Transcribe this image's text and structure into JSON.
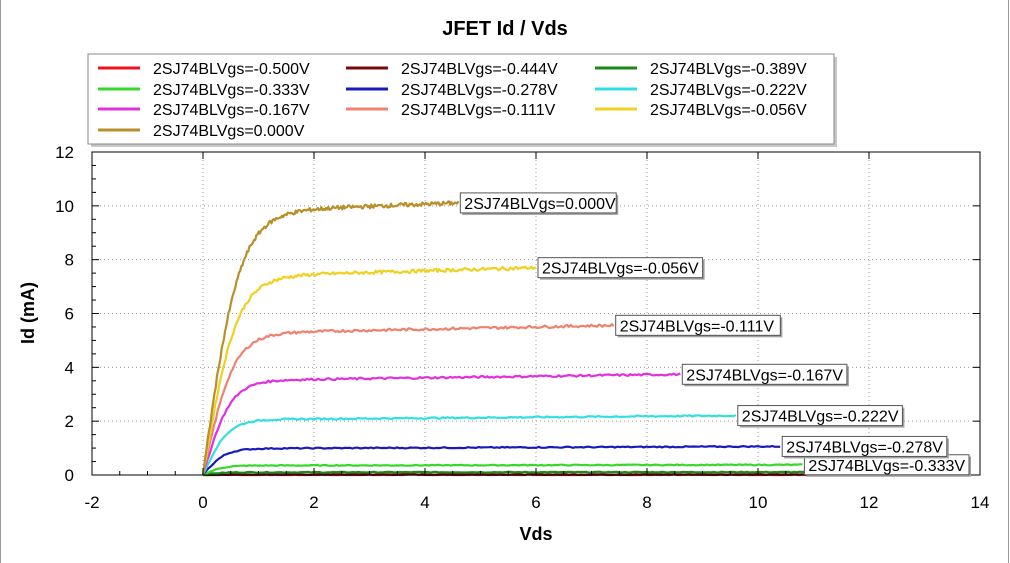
{
  "chart_data": {
    "type": "line",
    "title": "JFET Id / Vds",
    "xlabel": "Vds",
    "ylabel": "Id (mA)",
    "xlim": [
      -2,
      14
    ],
    "ylim": [
      0,
      12
    ],
    "xticks": [
      -2,
      0,
      2,
      4,
      6,
      8,
      10,
      12,
      14
    ],
    "yticks": [
      0,
      2,
      4,
      6,
      8,
      10,
      12
    ],
    "grid": true,
    "legend": "top",
    "series": [
      {
        "name": "2SJ74BLVgs=-0.500V",
        "color": "#e8141e",
        "x_end": 11.0,
        "sat": 0.0,
        "vk": 0.3,
        "label_shown": false
      },
      {
        "name": "2SJ74BLVgs=-0.444V",
        "color": "#7a0a0a",
        "x_end": 11.0,
        "sat": 0.02,
        "vk": 0.3,
        "label_shown": false
      },
      {
        "name": "2SJ74BLVgs=-0.389V",
        "color": "#1a8a1a",
        "x_end": 11.0,
        "sat": 0.1,
        "vk": 0.3,
        "label_shown": false
      },
      {
        "name": "2SJ74BLVgs=-0.333V",
        "color": "#36d82a",
        "x_end": 10.8,
        "sat": 0.35,
        "vk": 0.35,
        "label_shown": true
      },
      {
        "name": "2SJ74BLVgs=-0.278V",
        "color": "#1a1ab8",
        "x_end": 10.4,
        "sat": 0.98,
        "vk": 0.4,
        "label_shown": true
      },
      {
        "name": "2SJ74BLVgs=-0.222V",
        "color": "#30e0e0",
        "x_end": 9.6,
        "sat": 2.05,
        "vk": 0.45,
        "label_shown": true
      },
      {
        "name": "2SJ74BLVgs=-0.167V",
        "color": "#e030e0",
        "x_end": 8.6,
        "sat": 3.5,
        "vk": 0.5,
        "label_shown": true
      },
      {
        "name": "2SJ74BLVgs=-0.111V",
        "color": "#f08070",
        "x_end": 7.4,
        "sat": 5.25,
        "vk": 0.55,
        "label_shown": true
      },
      {
        "name": "2SJ74BLVgs=-0.056V",
        "color": "#f0d020",
        "x_end": 6.0,
        "sat": 7.35,
        "vk": 0.6,
        "label_shown": true
      },
      {
        "name": "2SJ74BLVgs=0.000V",
        "color": "#b8902a",
        "x_end": 4.6,
        "sat": 9.75,
        "vk": 0.65,
        "label_shown": true
      }
    ]
  }
}
